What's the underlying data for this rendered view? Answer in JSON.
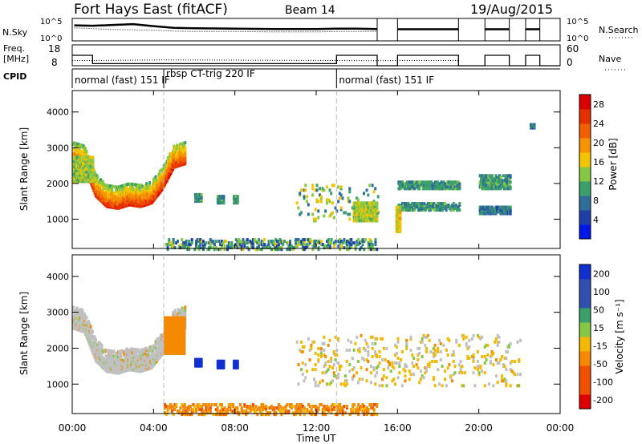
{
  "header": {
    "title": "Fort Hays East (fitACF)",
    "beam": "Beam 14",
    "date": "19/Aug/2015"
  },
  "noise_panel": {
    "left_label": "N.Sky",
    "right_label": "N.Search",
    "left_ticks": [
      "10^5",
      "10^0"
    ],
    "right_ticks": [
      "10^5",
      "10^0"
    ]
  },
  "freq_panel": {
    "left_label_line1": "Freq.",
    "left_label_line2": "[MHz]",
    "right_label": "Nave",
    "left_ticks": [
      "18",
      "8"
    ],
    "right_ticks": [
      "60",
      "0"
    ]
  },
  "cpid": {
    "label": "CPID",
    "segments": [
      {
        "start": 0.0,
        "end": 4.5,
        "text": "normal (fast) 151 IF"
      },
      {
        "start": 4.5,
        "end": 13.0,
        "text": "rbsp CT-trig 220 IF"
      },
      {
        "start": 13.0,
        "end": 24.0,
        "text": "normal (fast) 151 IF"
      }
    ]
  },
  "x_axis": {
    "label": "Time UT",
    "range": [
      0,
      24
    ],
    "ticks": [
      {
        "v": 0,
        "label": "00:00"
      },
      {
        "v": 4,
        "label": "04:00"
      },
      {
        "v": 8,
        "label": "08:00"
      },
      {
        "v": 12,
        "label": "12:00"
      },
      {
        "v": 16,
        "label": "16:00"
      },
      {
        "v": 20,
        "label": "20:00"
      },
      {
        "v": 24,
        "label": "00:00"
      }
    ]
  },
  "colors": {
    "power_scale": [
      "#0018e8",
      "#1f3fa8",
      "#2f6e9a",
      "#3aa06a",
      "#86c844",
      "#f5c400",
      "#f59300",
      "#f06000",
      "#e53000",
      "#dd0000"
    ],
    "velocity_scale": [
      "#e00000",
      "#f05000",
      "#f58a00",
      "#f5b800",
      "#c8c8c8",
      "#c8c8c8",
      "#86c844",
      "#3aa06a",
      "#3050b0",
      "#1030d0"
    ],
    "ground_scatter": "#c0c0c0"
  },
  "chart_data": [
    {
      "type": "line",
      "name": "noise-panel",
      "series": [
        {
          "name": "N.Sky",
          "x": [
            0.1,
            1.0,
            2.0,
            3.0,
            4.0,
            5.0,
            6.0,
            8.0,
            10.0,
            12.0,
            13.0,
            14.0,
            15.0
          ],
          "y": [
            3.8,
            3.7,
            3.9,
            4.1,
            3.6,
            3.2,
            3.1,
            3.0,
            2.9,
            2.9,
            3.0,
            3.0,
            2.9
          ]
        },
        {
          "name": "N.Search",
          "x": [
            0.1,
            1.0,
            2.0,
            3.0,
            4.0,
            5.0,
            6.0,
            8.0,
            10.0,
            12.0,
            13.0,
            14.0,
            15.0
          ],
          "y": [
            3.2,
            3.0,
            2.8,
            2.7,
            2.6,
            2.4,
            2.3,
            2.3,
            2.2,
            2.2,
            2.3,
            2.3,
            2.3
          ]
        }
      ],
      "ylim": [
        0,
        5.5
      ]
    },
    {
      "type": "line",
      "name": "freq-panel",
      "series": [
        {
          "name": "Freq.",
          "x": [
            0.0,
            1.0,
            1.0,
            13.0,
            13.0,
            15.0,
            15.0,
            16.0,
            16.0,
            19.0,
            19.0,
            20.3,
            20.3,
            21.5,
            21.5,
            22.3,
            22.3,
            23.0,
            23.0,
            24.0
          ],
          "y": [
            13.0,
            13.0,
            9.0,
            9.0,
            13.0,
            13.0,
            8.0,
            8.0,
            13.0,
            13.0,
            8.0,
            8.0,
            13.0,
            13.0,
            8.0,
            8.0,
            13.0,
            13.0,
            8.0,
            8.0
          ]
        },
        {
          "name": "Nave",
          "x": [
            0.0,
            1.0,
            4.5,
            13.0,
            15.0,
            16.0,
            19.0
          ],
          "y": [
            10.5,
            10.5,
            10.8,
            10.5,
            10.4,
            10.5,
            10.5
          ]
        }
      ],
      "ylim": [
        8,
        18
      ]
    },
    {
      "type": "heatmap",
      "name": "power-panel",
      "xlabel": "",
      "ylabel": "Slant Range [km]",
      "xlim": [
        0,
        24
      ],
      "ylim": [
        180,
        4600
      ],
      "yticks": [
        1000,
        2000,
        3000,
        4000
      ],
      "colorbar": {
        "label": "Power [dB]",
        "ticks": [
          4,
          8,
          12,
          16,
          20,
          24,
          28
        ],
        "range": [
          0,
          30
        ]
      },
      "regions": [
        {
          "x0": 0.0,
          "x1": 5.5,
          "kind": "u-band",
          "lower": [
            2600,
            2500,
            1700,
            1400,
            1350,
            1450,
            1400,
            1500,
            1900,
            2500,
            2600
          ],
          "width": 300,
          "spread_above": 600,
          "value_low": 26,
          "value_high": 12
        },
        {
          "x0": 0.0,
          "x1": 1.0,
          "kind": "block",
          "y0": 2100,
          "y1": 2800,
          "value": 14
        },
        {
          "x0": 6.0,
          "x1": 6.3,
          "kind": "block",
          "y0": 1550,
          "y1": 1750,
          "value": 10
        },
        {
          "x0": 7.1,
          "x1": 7.4,
          "kind": "block",
          "y0": 1500,
          "y1": 1700,
          "value": 10
        },
        {
          "x0": 7.9,
          "x1": 8.1,
          "kind": "block",
          "y0": 1500,
          "y1": 1700,
          "value": 10
        },
        {
          "x0": 4.5,
          "x1": 15.0,
          "kind": "floor",
          "y0": 200,
          "y1": 500,
          "value": 10
        },
        {
          "x0": 11.0,
          "x1": 15.0,
          "kind": "scatter",
          "y0": 1000,
          "y1": 2000,
          "value": 12
        },
        {
          "x0": 13.8,
          "x1": 15.0,
          "kind": "block",
          "y0": 1000,
          "y1": 1500,
          "value": 14
        },
        {
          "x0": 16.0,
          "x1": 19.0,
          "kind": "band",
          "y0": 1300,
          "y1": 1500,
          "value": 10
        },
        {
          "x0": 16.0,
          "x1": 19.0,
          "kind": "band",
          "y0": 1900,
          "y1": 2100,
          "value": 10
        },
        {
          "x0": 15.9,
          "x1": 16.1,
          "kind": "block",
          "y0": 700,
          "y1": 1400,
          "value": 16
        },
        {
          "x0": 20.0,
          "x1": 21.5,
          "kind": "band",
          "y0": 1900,
          "y1": 2300,
          "value": 10
        },
        {
          "x0": 20.0,
          "x1": 21.5,
          "kind": "band",
          "y0": 1200,
          "y1": 1400,
          "value": 8
        },
        {
          "x0": 22.5,
          "x1": 22.7,
          "kind": "block",
          "y0": 3600,
          "y1": 3700,
          "value": 8
        }
      ]
    },
    {
      "type": "heatmap",
      "name": "velocity-panel",
      "xlabel": "Time UT",
      "ylabel": "Slant Range [km]",
      "xlim": [
        0,
        24
      ],
      "ylim": [
        180,
        4600
      ],
      "yticks": [
        1000,
        2000,
        3000,
        4000
      ],
      "colorbar": {
        "label": "Velocity [m s⁻¹]",
        "ticks": [
          200,
          100,
          50,
          15,
          -15,
          -50,
          -100,
          -200
        ],
        "range": [
          -250,
          250
        ]
      },
      "regions": [
        {
          "x0": 0.0,
          "x1": 5.5,
          "kind": "u-band",
          "lower": [
            2600,
            2500,
            1700,
            1400,
            1350,
            1450,
            1400,
            1500,
            1900,
            2500,
            2600
          ],
          "width": 300,
          "spread_above": 600,
          "value_low": 0,
          "value_high": 0
        },
        {
          "x0": 4.5,
          "x1": 5.5,
          "kind": "block",
          "y0": 1900,
          "y1": 2900,
          "value": -60
        },
        {
          "x0": 6.0,
          "x1": 6.3,
          "kind": "block",
          "y0": 1550,
          "y1": 1750,
          "value": 220
        },
        {
          "x0": 7.1,
          "x1": 7.4,
          "kind": "block",
          "y0": 1500,
          "y1": 1700,
          "value": 220
        },
        {
          "x0": 7.9,
          "x1": 8.1,
          "kind": "block",
          "y0": 1500,
          "y1": 1700,
          "value": 220
        },
        {
          "x0": 4.5,
          "x1": 15.0,
          "kind": "floor",
          "y0": 200,
          "y1": 500,
          "value": -60
        },
        {
          "x0": 11.0,
          "x1": 22.0,
          "kind": "scatter",
          "y0": 1000,
          "y1": 2400,
          "value": 0
        }
      ]
    }
  ]
}
